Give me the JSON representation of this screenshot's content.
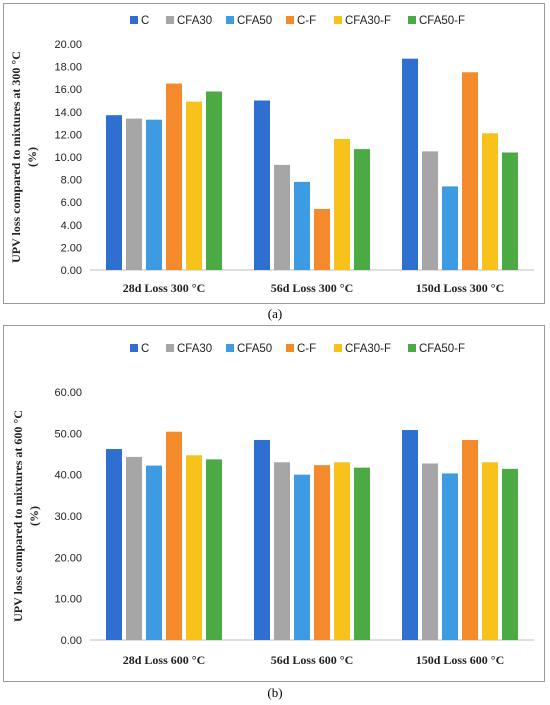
{
  "chart_data": [
    {
      "type": "bar",
      "panel": "a",
      "caption": "(a)",
      "ylabel_line1": "UPV loss compared to mixtures at 300 °C",
      "ylabel_line2": "(%)",
      "categories": [
        "28d Loss 300 °C",
        "56d Loss 300 °C",
        "150d Loss 300 °C"
      ],
      "ylim": [
        0,
        20
      ],
      "yticks": [
        "0.00",
        "2.00",
        "4.00",
        "6.00",
        "8.00",
        "10.00",
        "12.00",
        "14.00",
        "16.00",
        "18.00",
        "20.00"
      ],
      "grid": false,
      "legend": "top",
      "series": [
        {
          "name": "C",
          "color": "#2e6fcf",
          "values": [
            13.7,
            15.0,
            18.7
          ]
        },
        {
          "name": "CFA30",
          "color": "#a6a6a6",
          "values": [
            13.4,
            9.3,
            10.5
          ]
        },
        {
          "name": "CFA50",
          "color": "#3d9be3",
          "values": [
            13.3,
            7.8,
            7.4
          ]
        },
        {
          "name": "C-F",
          "color": "#f58a2c",
          "values": [
            16.5,
            5.4,
            17.5
          ]
        },
        {
          "name": "CFA30-F",
          "color": "#f7c31b",
          "values": [
            14.9,
            11.6,
            12.1
          ]
        },
        {
          "name": "CFA50-F",
          "color": "#4caa44",
          "values": [
            15.8,
            10.7,
            10.4
          ]
        }
      ]
    },
    {
      "type": "bar",
      "panel": "b",
      "caption": "(b)",
      "ylabel_line1": "UPV loss compared to mixtures at 600 °C",
      "ylabel_line2": "(%)",
      "categories": [
        "28d Loss 600 °C",
        "56d Loss 600 °C",
        "150d Loss 600 °C"
      ],
      "ylim": [
        0,
        60
      ],
      "yticks": [
        "0.00",
        "10.00",
        "20.00",
        "30.00",
        "40.00",
        "50.00",
        "60.00"
      ],
      "grid": false,
      "legend": "top",
      "series": [
        {
          "name": "C",
          "color": "#2e6fcf",
          "values": [
            46.2,
            48.4,
            50.8
          ]
        },
        {
          "name": "CFA30",
          "color": "#a6a6a6",
          "values": [
            44.3,
            43.0,
            42.7
          ]
        },
        {
          "name": "CFA50",
          "color": "#3d9be3",
          "values": [
            42.2,
            40.0,
            40.3
          ]
        },
        {
          "name": "C-F",
          "color": "#f58a2c",
          "values": [
            50.4,
            42.3,
            48.4
          ]
        },
        {
          "name": "CFA30-F",
          "color": "#f7c31b",
          "values": [
            44.7,
            43.0,
            43.0
          ]
        },
        {
          "name": "CFA50-F",
          "color": "#4caa44",
          "values": [
            43.7,
            41.7,
            41.4
          ]
        }
      ]
    }
  ]
}
